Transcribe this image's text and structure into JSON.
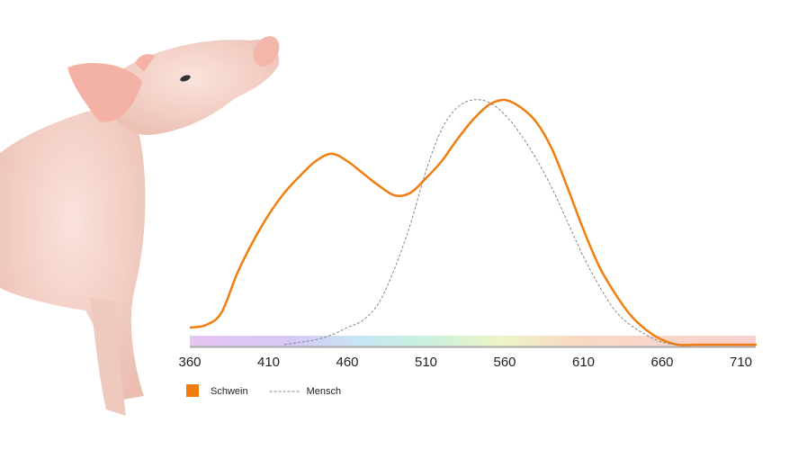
{
  "chart_data": {
    "type": "line",
    "x": [
      360,
      370,
      380,
      390,
      400,
      410,
      420,
      430,
      440,
      450,
      460,
      470,
      480,
      490,
      500,
      510,
      520,
      530,
      540,
      550,
      560,
      570,
      580,
      590,
      600,
      610,
      620,
      630,
      640,
      650,
      660,
      670,
      680,
      690,
      700,
      710,
      720
    ],
    "series": [
      {
        "name": "Schwein",
        "color": "#f07d0e",
        "style": "solid",
        "values": [
          0.07,
          0.08,
          0.13,
          0.29,
          0.42,
          0.53,
          0.62,
          0.69,
          0.75,
          0.78,
          0.75,
          0.7,
          0.65,
          0.61,
          0.62,
          0.68,
          0.75,
          0.84,
          0.92,
          0.98,
          1.0,
          0.97,
          0.91,
          0.8,
          0.64,
          0.47,
          0.32,
          0.21,
          0.12,
          0.06,
          0.02,
          0.0,
          0,
          0,
          0,
          0,
          0
        ]
      },
      {
        "name": "Mensch",
        "color": "#888888",
        "style": "dashed",
        "values": [
          null,
          null,
          null,
          null,
          null,
          null,
          0.0,
          0.01,
          0.02,
          0.04,
          0.07,
          0.1,
          0.17,
          0.31,
          0.49,
          0.71,
          0.88,
          0.97,
          1.0,
          0.99,
          0.94,
          0.86,
          0.76,
          0.64,
          0.5,
          0.36,
          0.24,
          0.14,
          0.08,
          0.04,
          0.01,
          0.0,
          null,
          null,
          null,
          null,
          null
        ]
      }
    ],
    "xlim": [
      360,
      720
    ],
    "ylim": [
      0,
      1
    ],
    "xticks": [
      360,
      410,
      460,
      510,
      560,
      610,
      660,
      710
    ],
    "spectrum_band": true,
    "legend": "bottom-left"
  }
}
